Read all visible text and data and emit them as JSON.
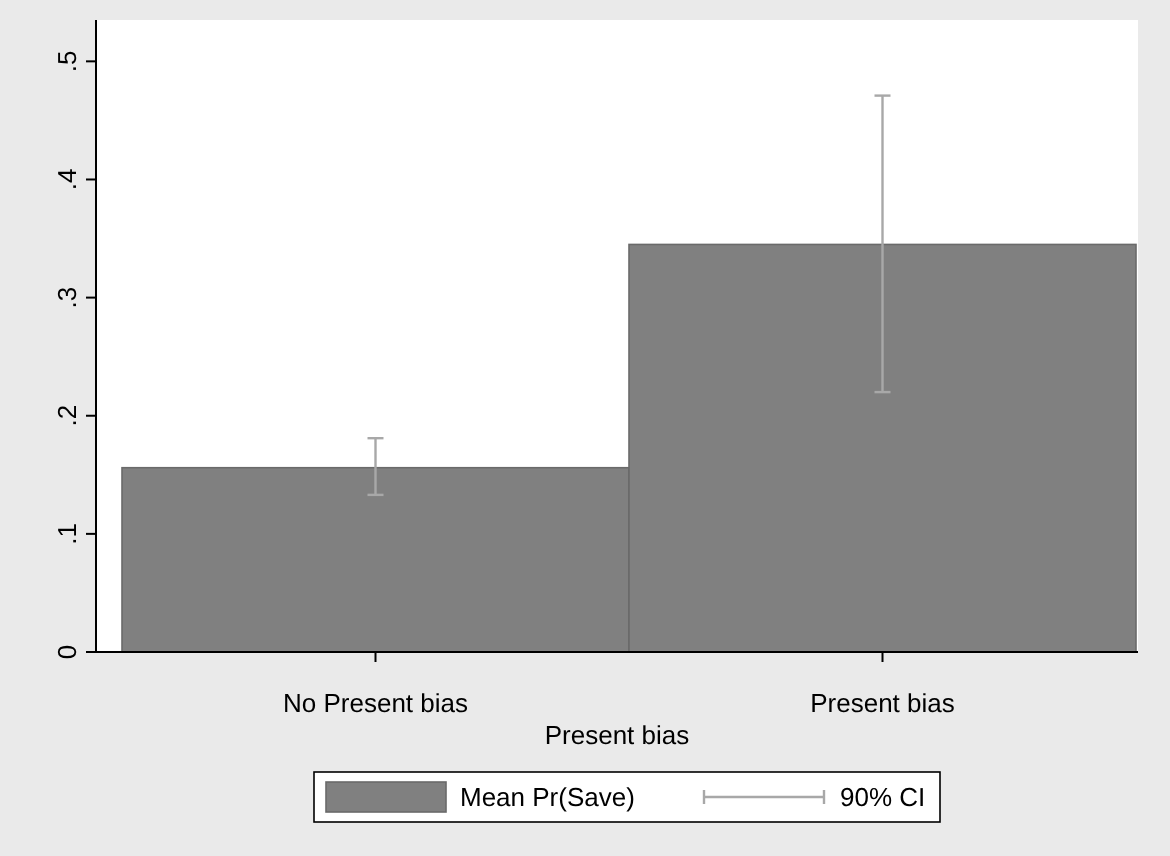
{
  "chart_data": {
    "type": "bar",
    "xlabel": "Present bias",
    "categories": [
      "No Present bias",
      "Present bias"
    ],
    "series": [
      {
        "name": "Mean Pr(Save)",
        "color": "#808080",
        "values": [
          0.156,
          0.345
        ],
        "errors": [
          [
            0.133,
            0.181
          ],
          [
            0.22,
            0.471
          ]
        ]
      }
    ],
    "ylim": [
      0,
      0.535
    ],
    "yticks": [
      0,
      {
        "value": 0.1,
        "label": ".1"
      },
      {
        "value": 0.2,
        "label": ".2"
      },
      {
        "value": 0.3,
        "label": ".3"
      },
      {
        "value": 0.4,
        "label": ".4"
      },
      {
        "value": 0.5,
        "label": ".5"
      }
    ],
    "grid": false,
    "legend": "bottom",
    "annotations": [
      "90% CI"
    ]
  }
}
